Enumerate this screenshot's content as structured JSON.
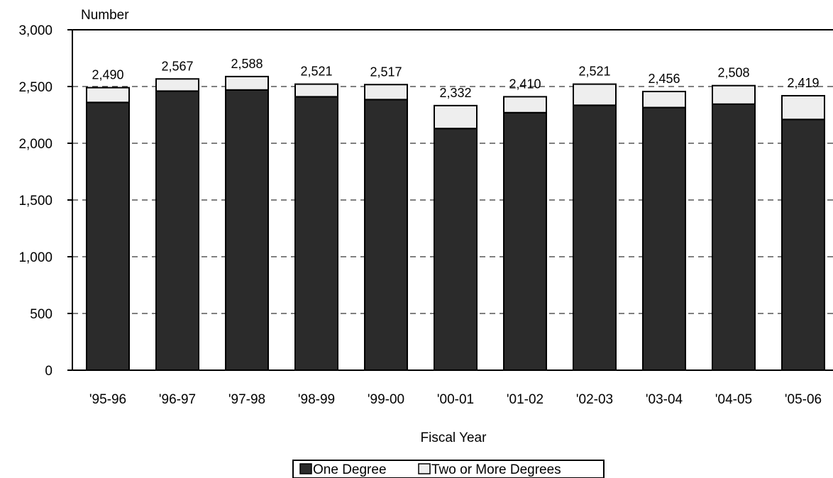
{
  "chart_data": {
    "type": "bar",
    "stacked": true,
    "categories": [
      "'95-96",
      "'96-97",
      "'97-98",
      "'98-99",
      "'99-00",
      "'00-01",
      "'01-02",
      "'02-03",
      "'03-04",
      "'04-05",
      "'05-06"
    ],
    "series": [
      {
        "name": "One Degree",
        "color": "#2b2b2b",
        "values": [
          2360,
          2460,
          2470,
          2410,
          2385,
          2130,
          2270,
          2335,
          2315,
          2345,
          2210
        ]
      },
      {
        "name": "Two or More Degrees",
        "color": "#eeeeee",
        "values": [
          130,
          107,
          118,
          111,
          132,
          202,
          140,
          186,
          141,
          163,
          209
        ]
      }
    ],
    "totals": [
      2490,
      2567,
      2588,
      2521,
      2517,
      2332,
      2410,
      2521,
      2456,
      2508,
      2419
    ],
    "total_labels": [
      "2,490",
      "2,567",
      "2,588",
      "2,521",
      "2,517",
      "2,332",
      "2,410",
      "2,521",
      "2,456",
      "2,508",
      "2,419"
    ],
    "ylabel": "Number",
    "xlabel": "Fiscal Year",
    "ylim": [
      0,
      3000
    ],
    "yticks": [
      0,
      500,
      1000,
      1500,
      2000,
      2500,
      3000
    ],
    "ytick_labels": [
      "0",
      "500",
      "1,000",
      "1,500",
      "2,000",
      "2,500",
      "3,000"
    ],
    "grid": "horizontal-dashed",
    "legend_position": "bottom-center"
  }
}
